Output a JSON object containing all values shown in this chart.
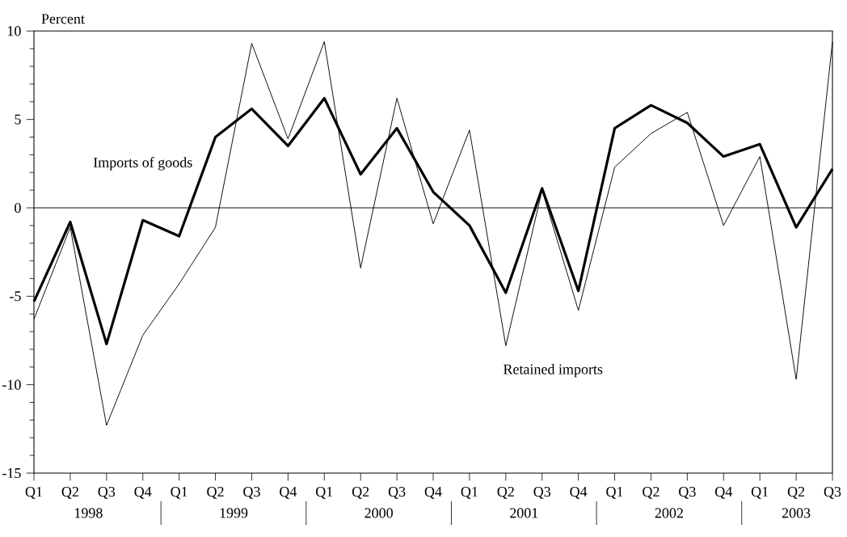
{
  "chart_data": {
    "type": "line",
    "ylabel": "Percent",
    "categories": [
      "Q1",
      "Q2",
      "Q3",
      "Q4",
      "Q1",
      "Q2",
      "Q3",
      "Q4",
      "Q1",
      "Q2",
      "Q3",
      "Q4",
      "Q1",
      "Q2",
      "Q3",
      "Q4",
      "Q1",
      "Q2",
      "Q3",
      "Q4",
      "Q1",
      "Q2",
      "Q3"
    ],
    "series": [
      {
        "name": "Imports of goods",
        "color": "#000000",
        "values": [
          -5.3,
          -0.8,
          -7.7,
          -0.7,
          -1.6,
          4.0,
          5.6,
          3.5,
          6.2,
          1.9,
          4.5,
          0.9,
          -1.0,
          -4.8,
          1.1,
          -4.7,
          4.5,
          5.8,
          4.8,
          2.9,
          3.6,
          -1.1,
          2.2
        ]
      },
      {
        "name": "Retained imports",
        "color": "#000000",
        "values": [
          -6.3,
          -1.1,
          -12.3,
          -7.2,
          -4.3,
          -1.1,
          9.3,
          3.9,
          9.4,
          -3.4,
          6.2,
          -0.9,
          4.4,
          -7.8,
          1.0,
          -5.8,
          2.3,
          4.2,
          5.4,
          -1.0,
          2.9,
          -9.7,
          9.4
        ]
      }
    ],
    "ylim": [
      -15,
      10
    ],
    "yticks": [
      -15,
      -10,
      -5,
      0,
      5,
      10
    ],
    "ref_lines": [
      {
        "axis": "y",
        "value": 0
      }
    ],
    "annotations": [
      "1998",
      "1999",
      "2000",
      "2001",
      "2002",
      "2003"
    ]
  }
}
